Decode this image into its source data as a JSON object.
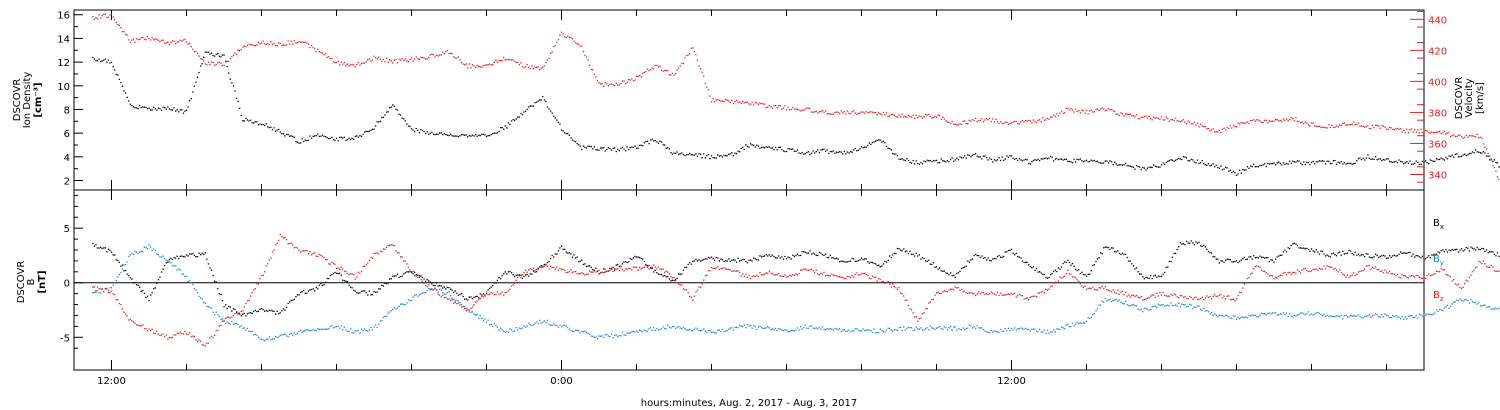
{
  "chart_data": [
    {
      "type": "scatter",
      "title": "",
      "ylabel_left": [
        "DSCOVR",
        "Ion Density",
        "[cm⁻³]"
      ],
      "ylabel_right": [
        "DSCOVR",
        "Velocity",
        "[km/s]"
      ],
      "ylim_left": [
        1.2,
        16.4
      ],
      "ylim_right": [
        330,
        446
      ],
      "yticks_left": [
        "2",
        "4",
        "6",
        "8",
        "10",
        "12",
        "14",
        "16"
      ],
      "yticks_right": [
        "340",
        "360",
        "380",
        "400",
        "420",
        "440"
      ],
      "grid": false,
      "series": [
        {
          "name": "Ion Density",
          "axis": "left",
          "color": "#000000",
          "x": [
            -0.5,
            0,
            0.5,
            1,
            1.5,
            2,
            2.5,
            3,
            3.5,
            4,
            4.5,
            5,
            5.5,
            6,
            6.5,
            7,
            7.5,
            8,
            8.5,
            9,
            9.5,
            10,
            10.5,
            11,
            11.5,
            12,
            12.5,
            13,
            13.5,
            14,
            14.5,
            15,
            15.5,
            16,
            16.5,
            17,
            17.5,
            18,
            18.5,
            19,
            19.5,
            20,
            20.5,
            21,
            21.5,
            22,
            22.5,
            23,
            23.5,
            24,
            24.5,
            25,
            25.5,
            26,
            26.5,
            27,
            27.5,
            28,
            28.5,
            29,
            29.5,
            30,
            30.5,
            31,
            31.5,
            32,
            32.5,
            33,
            33.5,
            34,
            34.5,
            35,
            35.5,
            36,
            36.5,
            37,
            37.5,
            38,
            38.5,
            39,
            39.5
          ],
          "y": [
            12.3,
            12.0,
            8.4,
            8.0,
            8.1,
            7.8,
            12.8,
            12.5,
            7.2,
            6.8,
            6.1,
            5.3,
            5.8,
            5.5,
            5.6,
            6.5,
            8.4,
            6.3,
            6.0,
            5.9,
            5.7,
            5.8,
            6.5,
            7.8,
            9.0,
            6.4,
            4.8,
            4.7,
            4.6,
            4.8,
            5.5,
            4.3,
            4.2,
            4.0,
            4.1,
            5.0,
            4.8,
            4.6,
            4.3,
            4.5,
            4.3,
            4.8,
            5.5,
            3.8,
            3.5,
            3.6,
            3.8,
            4.2,
            3.7,
            4.0,
            3.5,
            3.9,
            3.6,
            3.7,
            3.6,
            3.3,
            3.0,
            3.3,
            3.9,
            3.6,
            3.2,
            2.6,
            3.3,
            3.4,
            3.5,
            3.5,
            3.6,
            3.4,
            4.0,
            3.7,
            3.5,
            3.5,
            3.8,
            4.2,
            4.5,
            3.3,
            3.3,
            3.2,
            4.5,
            6.6,
            7.8
          ]
        },
        {
          "name": "Velocity",
          "axis": "right",
          "color": "#e8201c",
          "x": [
            -0.5,
            0,
            0.5,
            1,
            1.5,
            2,
            2.5,
            3,
            3.5,
            4,
            4.5,
            5,
            5.5,
            6,
            6.5,
            7,
            7.5,
            8,
            8.5,
            9,
            9.5,
            10,
            10.5,
            11,
            11.5,
            12,
            12.5,
            13,
            13.5,
            14,
            14.5,
            15,
            15.5,
            16,
            16.5,
            17,
            17.5,
            18,
            18.5,
            19,
            19.5,
            20,
            20.5,
            21,
            21.5,
            22,
            22.5,
            23,
            23.5,
            24,
            24.5,
            25,
            25.5,
            26,
            26.5,
            27,
            27.5,
            28,
            28.5,
            29,
            29.5,
            30,
            30.5,
            31,
            31.5,
            32,
            32.5,
            33,
            33.5,
            34,
            34.5,
            35,
            35.5,
            36,
            36.5,
            37,
            37.5,
            38,
            38.5,
            39,
            39.5
          ],
          "y": [
            441,
            443,
            426,
            428,
            425,
            426,
            412,
            411,
            422,
            425,
            424,
            426,
            420,
            412,
            410,
            415,
            413,
            414,
            416,
            419,
            410,
            410,
            415,
            410,
            408,
            431,
            424,
            398,
            398,
            402,
            410,
            404,
            422,
            388,
            387,
            386,
            384,
            383,
            382,
            380,
            380,
            380,
            379,
            378,
            377,
            378,
            372,
            375,
            375,
            373,
            374,
            376,
            382,
            380,
            382,
            378,
            377,
            376,
            375,
            372,
            367,
            372,
            375,
            374,
            376,
            372,
            371,
            373,
            371,
            370,
            368,
            368,
            367,
            364,
            365,
            337,
            362,
            370,
            375,
            377,
            377
          ]
        }
      ]
    },
    {
      "type": "scatter",
      "title": "",
      "ylabel_left": [
        "DSCOVR",
        "B",
        "[nT]"
      ],
      "ylim": [
        -8,
        8.5
      ],
      "yticks": [
        "-5",
        "0",
        "5"
      ],
      "zero_line": true,
      "grid": false,
      "legend_position": "right",
      "series": [
        {
          "name": "Bx",
          "color": "#000000",
          "x": [
            -0.5,
            0,
            0.5,
            1,
            1.5,
            2,
            2.5,
            3,
            3.5,
            4,
            4.5,
            5,
            5.5,
            6,
            6.5,
            7,
            7.5,
            8,
            8.5,
            9,
            9.5,
            10,
            10.5,
            11,
            11.5,
            12,
            12.5,
            13,
            13.5,
            14,
            14.5,
            15,
            15.5,
            16,
            16.5,
            17,
            17.5,
            18,
            18.5,
            19,
            19.5,
            20,
            20.5,
            21,
            21.5,
            22,
            22.5,
            23,
            23.5,
            24,
            24.5,
            25,
            25.5,
            26,
            26.5,
            27,
            27.5,
            28,
            28.5,
            29,
            29.5,
            30,
            30.5,
            31,
            31.5,
            32,
            32.5,
            33,
            33.5,
            34,
            34.5,
            35,
            35.5,
            36,
            36.5,
            37,
            37.5,
            38,
            38.5,
            39,
            39.5
          ],
          "y": [
            3.5,
            2.8,
            0.5,
            -1.5,
            2.0,
            2.5,
            2.6,
            -2.0,
            -3.0,
            -2.5,
            -2.8,
            -1.0,
            -0.5,
            1.0,
            -0.8,
            -1.0,
            0.5,
            1.0,
            0.0,
            -0.5,
            -1.5,
            -1.0,
            1.0,
            0.5,
            1.5,
            3.2,
            2.0,
            1.0,
            1.5,
            2.5,
            1.0,
            0.2,
            2.0,
            2.2,
            2.1,
            2.0,
            2.5,
            2.2,
            2.8,
            2.6,
            2.0,
            2.2,
            1.5,
            3.1,
            2.5,
            1.5,
            0.5,
            2.5,
            2.0,
            3.0,
            1.5,
            0.5,
            2.0,
            0.5,
            3.3,
            2.6,
            0.5,
            0.5,
            3.6,
            3.7,
            2.0,
            2.0,
            2.4,
            2.0,
            3.5,
            3.0,
            2.5,
            2.8,
            2.5,
            2.4,
            2.8,
            2.2,
            3.0,
            3.0,
            3.2,
            2.5,
            3.0,
            3.2,
            3.5,
            4.6,
            4.3
          ]
        },
        {
          "name": "By",
          "color": "#1a88d8",
          "x": [
            -0.5,
            0,
            0.5,
            1,
            1.5,
            2,
            2.5,
            3,
            3.5,
            4,
            4.5,
            5,
            5.5,
            6,
            6.5,
            7,
            7.5,
            8,
            8.5,
            9,
            9.5,
            10,
            10.5,
            11,
            11.5,
            12,
            12.5,
            13,
            13.5,
            14,
            14.5,
            15,
            15.5,
            16,
            16.5,
            17,
            17.5,
            18,
            18.5,
            19,
            19.5,
            20,
            20.5,
            21,
            21.5,
            22,
            22.5,
            23,
            23.5,
            24,
            24.5,
            25,
            25.5,
            26,
            26.5,
            27,
            27.5,
            28,
            28.5,
            29,
            29.5,
            30,
            30.5,
            31,
            31.5,
            32,
            32.5,
            33,
            33.5,
            34,
            34.5,
            35,
            35.5,
            36,
            36.5,
            37,
            37.5,
            38,
            38.5,
            39,
            39.5
          ],
          "y": [
            -1.0,
            -0.5,
            2.5,
            3.3,
            2.0,
            0.5,
            -2.0,
            -3.5,
            -4.0,
            -5.2,
            -5.0,
            -4.5,
            -4.3,
            -4.0,
            -4.5,
            -4.2,
            -2.5,
            -1.5,
            -0.5,
            -1.0,
            -2.5,
            -3.5,
            -4.5,
            -4.0,
            -3.5,
            -4.0,
            -4.5,
            -5.0,
            -4.8,
            -4.5,
            -4.2,
            -4.0,
            -4.3,
            -4.5,
            -4.2,
            -4.0,
            -4.2,
            -4.5,
            -4.0,
            -4.2,
            -4.3,
            -4.4,
            -4.4,
            -4.2,
            -4.2,
            -4.1,
            -4.2,
            -4.0,
            -4.5,
            -4.2,
            -4.3,
            -4.5,
            -4.0,
            -3.5,
            -1.5,
            -1.8,
            -2.5,
            -2.0,
            -2.0,
            -2.3,
            -3.0,
            -3.2,
            -3.0,
            -2.8,
            -3.0,
            -2.8,
            -3.0,
            -3.2,
            -3.0,
            -3.0,
            -3.2,
            -3.0,
            -2.5,
            -1.5,
            -2.0,
            -2.5,
            -2.0,
            -1.5,
            -1.5,
            -1.0,
            1.0
          ]
        },
        {
          "name": "Bz",
          "color": "#e8201c",
          "x": [
            -0.5,
            0,
            0.5,
            1,
            1.5,
            2,
            2.5,
            3,
            3.5,
            4,
            4.5,
            5,
            5.5,
            6,
            6.5,
            7,
            7.5,
            8,
            8.5,
            9,
            9.5,
            10,
            10.5,
            11,
            11.5,
            12,
            12.5,
            13,
            13.5,
            14,
            14.5,
            15,
            15.5,
            16,
            16.5,
            17,
            17.5,
            18,
            18.5,
            19,
            19.5,
            20,
            20.5,
            21,
            21.5,
            22,
            22.5,
            23,
            23.5,
            24,
            24.5,
            25,
            25.5,
            26,
            26.5,
            27,
            27.5,
            28,
            28.5,
            29,
            29.5,
            30,
            30.5,
            31,
            31.5,
            32,
            32.5,
            33,
            33.5,
            34,
            34.5,
            35,
            35.5,
            36,
            36.5,
            37,
            37.5,
            38,
            38.5,
            39,
            39.5
          ],
          "y": [
            -0.5,
            -0.8,
            -3.5,
            -4.3,
            -5.0,
            -4.5,
            -5.8,
            -3.5,
            -2.5,
            0.5,
            4.3,
            3.0,
            2.5,
            1.5,
            0.5,
            2.5,
            3.5,
            1.0,
            -0.5,
            -1.5,
            -2.5,
            -1.0,
            -1.0,
            1.0,
            1.5,
            1.2,
            0.8,
            1.0,
            1.2,
            1.3,
            1.5,
            0.5,
            -1.5,
            1.5,
            1.2,
            0.5,
            1.0,
            0.5,
            1.2,
            0.8,
            0.5,
            0.8,
            0.2,
            -0.5,
            -3.5,
            -1.0,
            -0.5,
            -1.0,
            -1.0,
            -1.0,
            -1.5,
            -0.5,
            1.0,
            -0.5,
            -0.5,
            -1.0,
            -1.5,
            -1.0,
            -1.2,
            -1.5,
            -1.2,
            -1.5,
            1.5,
            0.5,
            1.0,
            1.2,
            1.5,
            0.5,
            1.5,
            1.0,
            0.5,
            0.5,
            1.2,
            -0.5,
            2.0,
            1.0,
            1.5,
            2.5,
            3.5,
            3.6,
            3.8
          ]
        }
      ]
    }
  ],
  "x_axis": {
    "label": "hours:minutes, Aug.  2, 2017 - Aug.  3, 2017",
    "ticks": [
      {
        "hours": 0,
        "label": "12:00"
      },
      {
        "hours": 12,
        "label": "0:00"
      },
      {
        "hours": 24,
        "label": "12:00"
      }
    ],
    "minor_ticks_hours": 2,
    "xlim_hours": [
      -1,
      35
    ]
  },
  "legend_labels": [
    {
      "base": "B",
      "sub": "x",
      "color": "#000000"
    },
    {
      "base": "B",
      "sub": "y",
      "color": "#1a88d8"
    },
    {
      "base": "B",
      "sub": "z",
      "color": "#e8201c"
    }
  ]
}
